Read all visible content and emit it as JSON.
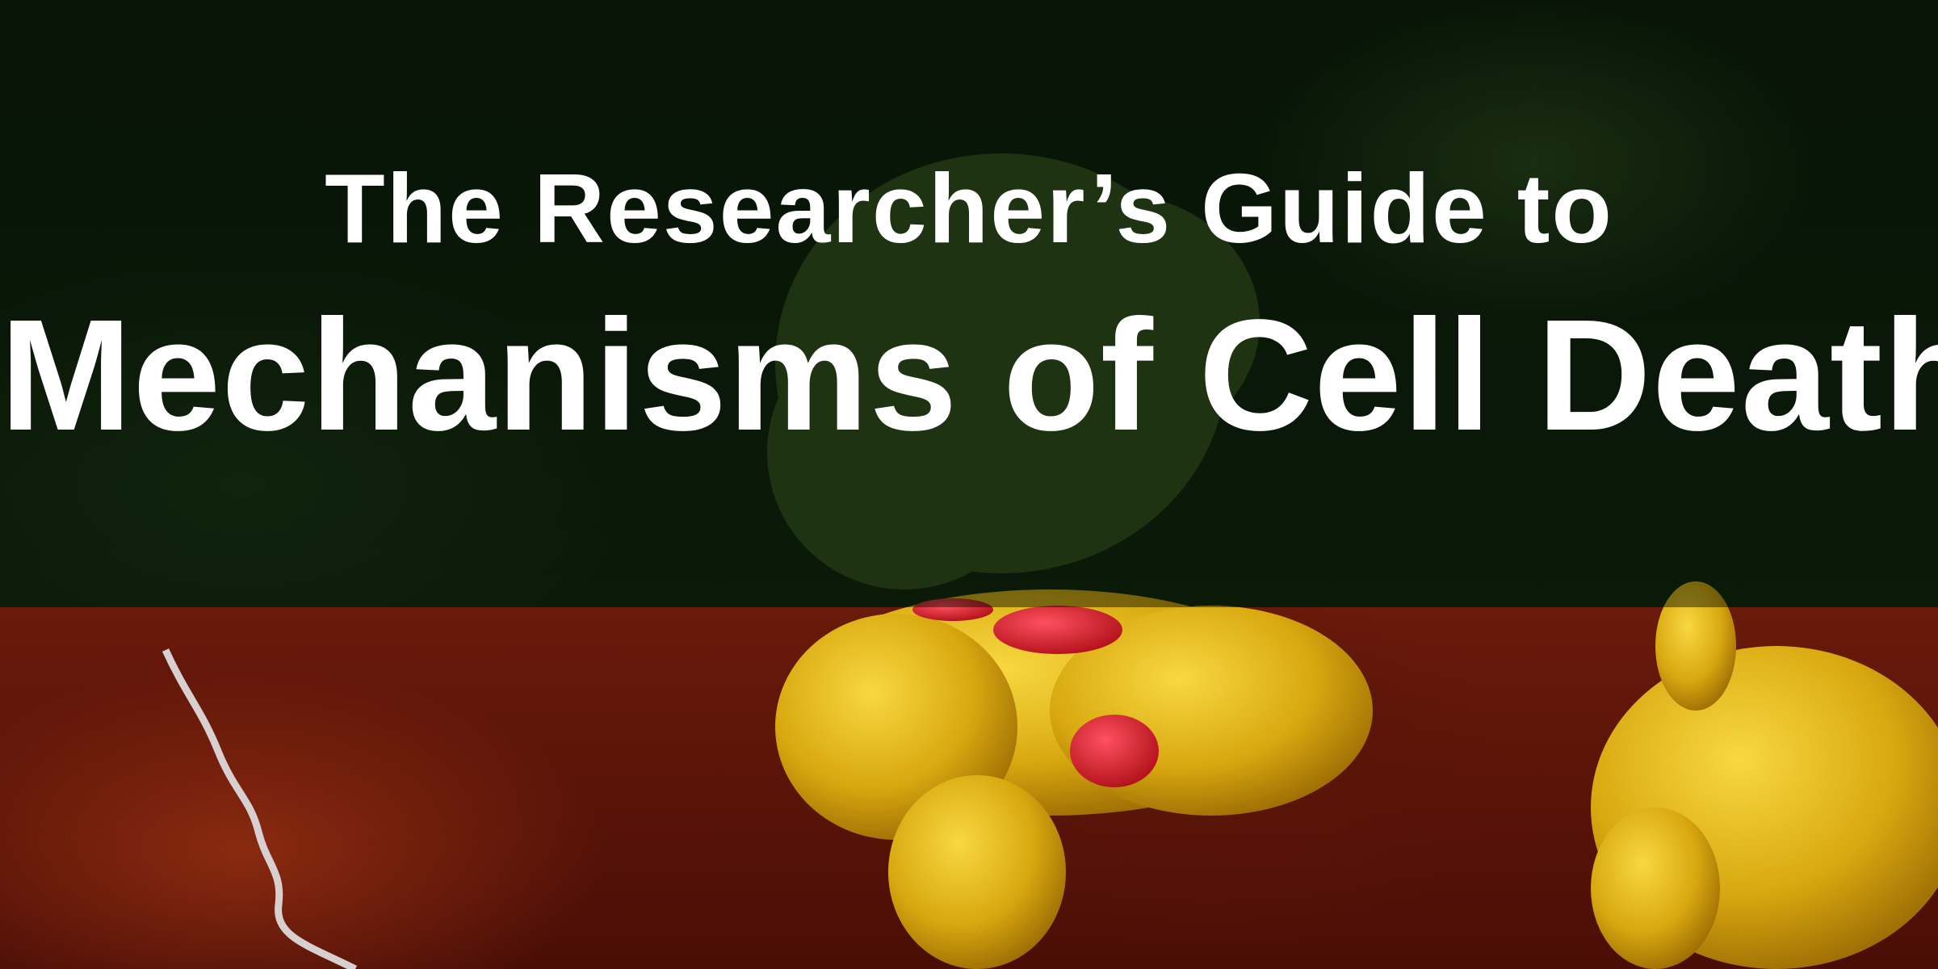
{
  "banner": {
    "title_line1": "The Researcher’s Guide to",
    "title_line2": "Mechanisms of Cell Death"
  },
  "colors": {
    "top_overlay": "#0e1c0c",
    "bottom_background": "#5a1408",
    "protein_yellow": "#e0b010",
    "protein_red": "#d0202a",
    "text": "#ffffff"
  }
}
